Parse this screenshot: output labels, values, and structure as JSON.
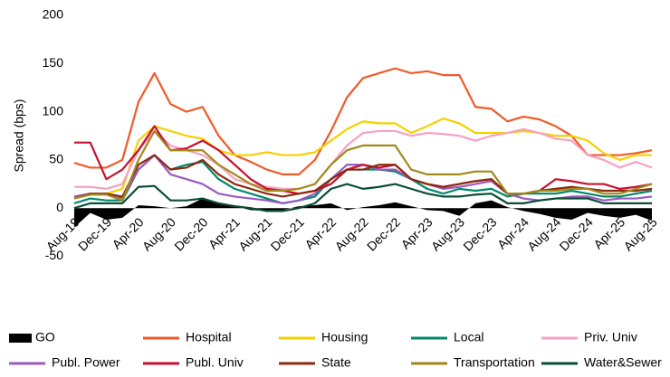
{
  "chart_data": {
    "type": "line",
    "ylabel": "Spread (bps)",
    "categories": [
      "Aug-19",
      null,
      "Dec-19",
      null,
      "Apr-20",
      null,
      "Aug-20",
      null,
      "Dec-20",
      null,
      "Apr-21",
      null,
      "Aug-21",
      null,
      "Dec-21",
      null,
      "Apr-22",
      null,
      "Aug-22",
      null,
      "Dec-22",
      null,
      "Apr-23",
      null,
      "Aug-23",
      null,
      "Dec-23",
      null,
      "Apr-24",
      null,
      "Aug-24",
      null,
      "Dec-24",
      null,
      "Apr-25",
      null,
      "Aug-25"
    ],
    "ylim": [
      -50,
      200
    ],
    "yticks": [
      -50,
      0,
      50,
      100,
      150,
      200
    ],
    "series": [
      {
        "name": "GO",
        "color": "#000000",
        "fill": true,
        "values": [
          -20,
          -5,
          -12,
          -10,
          3,
          2,
          0,
          2,
          10,
          5,
          2,
          -2,
          -3,
          -2,
          2,
          3,
          5,
          -2,
          1,
          3,
          6,
          2,
          -2,
          -3,
          -8,
          5,
          8,
          1,
          -3,
          -6,
          -10,
          -12,
          -5,
          -8,
          -10,
          -7,
          -13
        ]
      },
      {
        "name": "Hospital",
        "color": "#f05a28",
        "values": [
          47,
          42,
          42,
          50,
          110,
          140,
          108,
          100,
          105,
          75,
          55,
          48,
          40,
          35,
          35,
          50,
          80,
          115,
          135,
          140,
          145,
          140,
          142,
          138,
          138,
          105,
          103,
          90,
          95,
          92,
          85,
          75,
          55,
          55,
          55,
          57,
          60
        ]
      },
      {
        "name": "Housing",
        "color": "#f5d000",
        "values": [
          12,
          15,
          15,
          20,
          70,
          85,
          80,
          75,
          72,
          60,
          55,
          55,
          58,
          55,
          55,
          58,
          70,
          82,
          90,
          88,
          88,
          78,
          85,
          93,
          88,
          78,
          78,
          78,
          80,
          78,
          75,
          75,
          70,
          57,
          50,
          55,
          55
        ]
      },
      {
        "name": "Local",
        "color": "#00896b",
        "values": [
          5,
          10,
          8,
          8,
          40,
          55,
          40,
          45,
          48,
          30,
          20,
          15,
          10,
          5,
          8,
          12,
          30,
          40,
          40,
          40,
          38,
          30,
          20,
          15,
          20,
          18,
          20,
          12,
          15,
          15,
          15,
          18,
          15,
          12,
          12,
          15,
          18
        ]
      },
      {
        "name": "Priv. Univ",
        "color": "#f7a1c4",
        "values": [
          22,
          22,
          20,
          25,
          60,
          80,
          65,
          60,
          55,
          45,
          30,
          25,
          22,
          20,
          20,
          25,
          45,
          65,
          78,
          80,
          80,
          75,
          78,
          77,
          75,
          70,
          75,
          78,
          82,
          78,
          72,
          70,
          55,
          50,
          42,
          48,
          42
        ]
      },
      {
        "name": "Publ. Power",
        "color": "#9b59c0",
        "values": [
          12,
          15,
          15,
          10,
          40,
          55,
          35,
          30,
          25,
          15,
          12,
          10,
          8,
          5,
          8,
          15,
          30,
          45,
          45,
          40,
          40,
          30,
          25,
          20,
          22,
          25,
          28,
          15,
          10,
          8,
          10,
          12,
          12,
          8,
          10,
          10,
          12
        ]
      },
      {
        "name": "Publ. Univ",
        "color": "#c8102e",
        "values": [
          68,
          68,
          30,
          40,
          60,
          85,
          60,
          62,
          70,
          60,
          45,
          30,
          20,
          18,
          15,
          18,
          25,
          40,
          45,
          42,
          45,
          30,
          25,
          22,
          25,
          28,
          30,
          15,
          15,
          18,
          30,
          28,
          25,
          25,
          20,
          22,
          25
        ]
      },
      {
        "name": "State",
        "color": "#8b2a0e",
        "values": [
          10,
          15,
          15,
          12,
          45,
          55,
          40,
          42,
          50,
          35,
          25,
          20,
          15,
          12,
          15,
          18,
          30,
          40,
          40,
          45,
          45,
          30,
          25,
          22,
          25,
          28,
          30,
          15,
          15,
          18,
          20,
          22,
          20,
          18,
          18,
          18,
          20
        ]
      },
      {
        "name": "Transportation",
        "color": "#a08a1a",
        "values": [
          10,
          14,
          14,
          8,
          50,
          80,
          60,
          60,
          60,
          45,
          35,
          25,
          18,
          18,
          20,
          25,
          45,
          60,
          65,
          65,
          65,
          40,
          35,
          35,
          35,
          38,
          38,
          15,
          15,
          18,
          18,
          20,
          20,
          15,
          15,
          20,
          25
        ]
      },
      {
        "name": "Water&Sewer",
        "color": "#0b4d36",
        "values": [
          0,
          5,
          5,
          5,
          22,
          23,
          8,
          8,
          10,
          5,
          2,
          0,
          -3,
          -3,
          0,
          5,
          20,
          25,
          20,
          22,
          25,
          20,
          15,
          12,
          12,
          14,
          15,
          5,
          5,
          8,
          10,
          10,
          10,
          5,
          5,
          5,
          5
        ]
      }
    ]
  }
}
